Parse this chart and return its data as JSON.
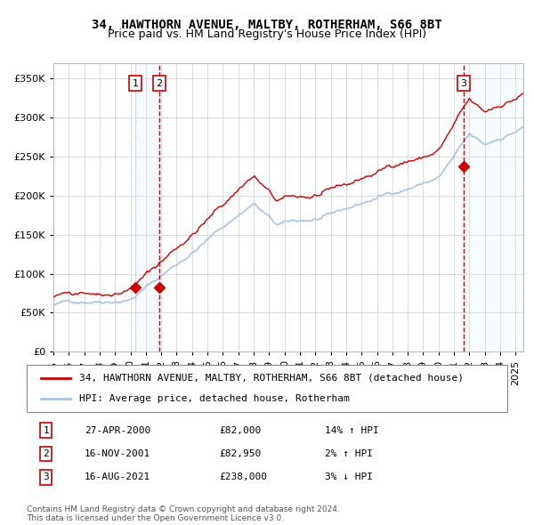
{
  "title": "34, HAWTHORN AVENUE, MALTBY, ROTHERHAM, S66 8BT",
  "subtitle": "Price paid vs. HM Land Registry's House Price Index (HPI)",
  "xlim": [
    1995.0,
    2025.5
  ],
  "ylim": [
    0,
    370000
  ],
  "yticks": [
    0,
    50000,
    100000,
    150000,
    200000,
    250000,
    300000,
    350000
  ],
  "ytick_labels": [
    "£0",
    "£50K",
    "£100K",
    "£150K",
    "£200K",
    "£250K",
    "£300K",
    "£350K"
  ],
  "xtick_years": [
    1995,
    1996,
    1997,
    1998,
    1999,
    2000,
    2001,
    2002,
    2003,
    2004,
    2005,
    2006,
    2007,
    2008,
    2009,
    2010,
    2011,
    2012,
    2013,
    2014,
    2015,
    2016,
    2017,
    2018,
    2019,
    2020,
    2021,
    2022,
    2023,
    2024,
    2025
  ],
  "hpi_color": "#aac4e0",
  "price_color": "#cc0000",
  "grid_color": "#cccccc",
  "bg_color": "#ffffff",
  "sale_dates": [
    2000.32,
    2001.88,
    2021.62
  ],
  "sale_prices": [
    82000,
    82950,
    238000
  ],
  "sale_labels": [
    "1",
    "2",
    "3"
  ],
  "vline_color_dashed": "#cc0000",
  "vspan_color": "#ddeeff",
  "legend_label_red": "34, HAWTHORN AVENUE, MALTBY, ROTHERHAM, S66 8BT (detached house)",
  "legend_label_blue": "HPI: Average price, detached house, Rotherham",
  "table_data": [
    [
      "1",
      "27-APR-2000",
      "£82,000",
      "14% ↑ HPI"
    ],
    [
      "2",
      "16-NOV-2001",
      "£82,950",
      "2% ↑ HPI"
    ],
    [
      "3",
      "16-AUG-2021",
      "£238,000",
      "3% ↓ HPI"
    ]
  ],
  "footer": "Contains HM Land Registry data © Crown copyright and database right 2024.\nThis data is licensed under the Open Government Licence v3.0.",
  "title_fontsize": 10,
  "subtitle_fontsize": 9,
  "tick_fontsize": 8,
  "legend_fontsize": 8,
  "table_fontsize": 8
}
